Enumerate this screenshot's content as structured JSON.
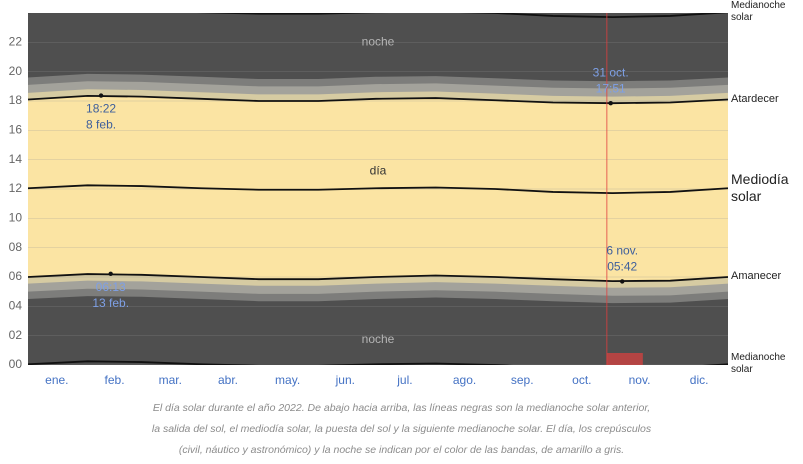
{
  "chart_data": {
    "type": "daylight",
    "x": [
      1,
      32,
      60,
      91,
      121,
      152,
      182,
      213,
      244,
      274,
      305,
      335,
      365
    ],
    "xlim": [
      1,
      365
    ],
    "xticks": [
      {
        "value": 16,
        "label": "ene."
      },
      {
        "value": 46,
        "label": "feb."
      },
      {
        "value": 75,
        "label": "mar."
      },
      {
        "value": 105,
        "label": "abr."
      },
      {
        "value": 136,
        "label": "may."
      },
      {
        "value": 166,
        "label": "jun."
      },
      {
        "value": 197,
        "label": "jul."
      },
      {
        "value": 228,
        "label": "ago."
      },
      {
        "value": 258,
        "label": "sep."
      },
      {
        "value": 289,
        "label": "oct."
      },
      {
        "value": 319,
        "label": "nov."
      },
      {
        "value": 350,
        "label": "dic."
      }
    ],
    "ylim": [
      0,
      24
    ],
    "yticks": [
      {
        "value": 0,
        "label": "00"
      },
      {
        "value": 2,
        "label": "02"
      },
      {
        "value": 4,
        "label": "04"
      },
      {
        "value": 6,
        "label": "06"
      },
      {
        "value": 8,
        "label": "08"
      },
      10,
      12,
      14,
      16,
      18,
      20,
      22
    ],
    "grid": true,
    "night_color": "#4f4f4f",
    "bands": [
      {
        "color": "#7d7d7b",
        "lower": [
          4.5,
          4.7,
          4.65,
          4.5,
          4.35,
          4.35,
          4.5,
          4.6,
          4.5,
          4.35,
          4.22,
          4.25,
          4.5
        ],
        "upper": [
          19.6,
          19.85,
          19.8,
          19.65,
          19.5,
          19.5,
          19.65,
          19.7,
          19.55,
          19.4,
          19.35,
          19.4,
          19.6
        ]
      },
      {
        "color": "#a3a29b",
        "lower": [
          5.0,
          5.2,
          5.15,
          5.0,
          4.85,
          4.85,
          5.0,
          5.1,
          5.0,
          4.85,
          4.72,
          4.75,
          5.0
        ],
        "upper": [
          19.1,
          19.35,
          19.3,
          19.15,
          19.0,
          19.0,
          19.15,
          19.2,
          19.05,
          18.9,
          18.85,
          18.9,
          19.1
        ]
      },
      {
        "color": "#d6cba2",
        "lower": [
          5.55,
          5.75,
          5.7,
          5.55,
          5.4,
          5.4,
          5.55,
          5.65,
          5.55,
          5.4,
          5.27,
          5.3,
          5.55
        ],
        "upper": [
          18.55,
          18.8,
          18.75,
          18.6,
          18.45,
          18.45,
          18.6,
          18.65,
          18.5,
          18.35,
          18.3,
          18.35,
          18.55
        ]
      },
      {
        "color": "#fbe4a3",
        "lower": [
          6.0,
          6.2,
          6.15,
          6.0,
          5.85,
          5.85,
          6.0,
          6.1,
          6.0,
          5.85,
          5.72,
          5.75,
          6.0
        ],
        "upper": [
          18.1,
          18.35,
          18.3,
          18.15,
          18.0,
          18.0,
          18.15,
          18.2,
          18.05,
          17.9,
          17.85,
          17.9,
          18.1
        ]
      }
    ],
    "series": [
      {
        "name": "Medianoche solar",
        "color": "#111111",
        "size": 10,
        "values": [
          24.05,
          24.25,
          24.2,
          24.05,
          23.95,
          23.95,
          24.05,
          24.1,
          24.0,
          23.8,
          23.72,
          23.8,
          24.05
        ]
      },
      {
        "name": "Atardecer",
        "color": "#111111",
        "size": 11,
        "values": [
          18.1,
          18.35,
          18.3,
          18.15,
          18.0,
          18.0,
          18.15,
          18.2,
          18.05,
          17.9,
          17.85,
          17.9,
          18.1
        ]
      },
      {
        "name": "Mediodía solar",
        "color": "#111111",
        "size": 14,
        "values": [
          12.05,
          12.25,
          12.2,
          12.05,
          11.95,
          11.95,
          12.05,
          12.1,
          12.0,
          11.8,
          11.72,
          11.8,
          12.05
        ]
      },
      {
        "name": "Amanecer",
        "color": "#111111",
        "size": 11,
        "values": [
          6.0,
          6.2,
          6.15,
          6.0,
          5.85,
          5.85,
          6.0,
          6.1,
          6.0,
          5.85,
          5.72,
          5.75,
          6.0
        ]
      },
      {
        "name": "Medianoche solar",
        "color": "#111111",
        "size": 10,
        "values": [
          0.05,
          0.25,
          0.2,
          0.05,
          -0.05,
          -0.05,
          0.05,
          0.1,
          0.0,
          -0.2,
          -0.28,
          -0.2,
          0.05
        ]
      }
    ],
    "annotations": [
      {
        "lines": [
          "noche"
        ],
        "x": 183,
        "y": 22,
        "color": "#b5b5b5"
      },
      {
        "lines": [
          "día"
        ],
        "x": 183,
        "y": 13.2,
        "color": "#333333"
      },
      {
        "lines": [
          "noche"
        ],
        "x": 183,
        "y": 1.7,
        "color": "#b5b5b5"
      }
    ],
    "point_labels": [
      {
        "lines": [
          "18:22",
          "8 feb."
        ],
        "x": 39,
        "y": 18.37,
        "position": "below",
        "color": "#3e5f9c"
      },
      {
        "lines": [
          "06:13",
          "13 feb."
        ],
        "x": 44,
        "y": 6.22,
        "position": "below",
        "color": "#7ea0e6"
      },
      {
        "lines": [
          "31 oct.",
          "17:51"
        ],
        "x": 304,
        "y": 17.85,
        "position": "above",
        "color": "#7ea0e6"
      },
      {
        "lines": [
          "6 nov.",
          "05:42"
        ],
        "x": 310,
        "y": 5.7,
        "position": "above",
        "color": "#3e5f9c"
      }
    ],
    "marker": {
      "x": 302,
      "color": "#e0403f"
    },
    "caption": [
      "El día solar durante el año 2022. De abajo hacia arriba, las líneas negras son la medianoche solar anterior,",
      "la salida del sol, el mediodía solar, la puesta del sol y la siguiente medianoche solar. El día, los crepúsculos",
      "(civil, náutico y astronómico) y la noche se indican por el color de las bandas, de amarillo a gris."
    ]
  }
}
